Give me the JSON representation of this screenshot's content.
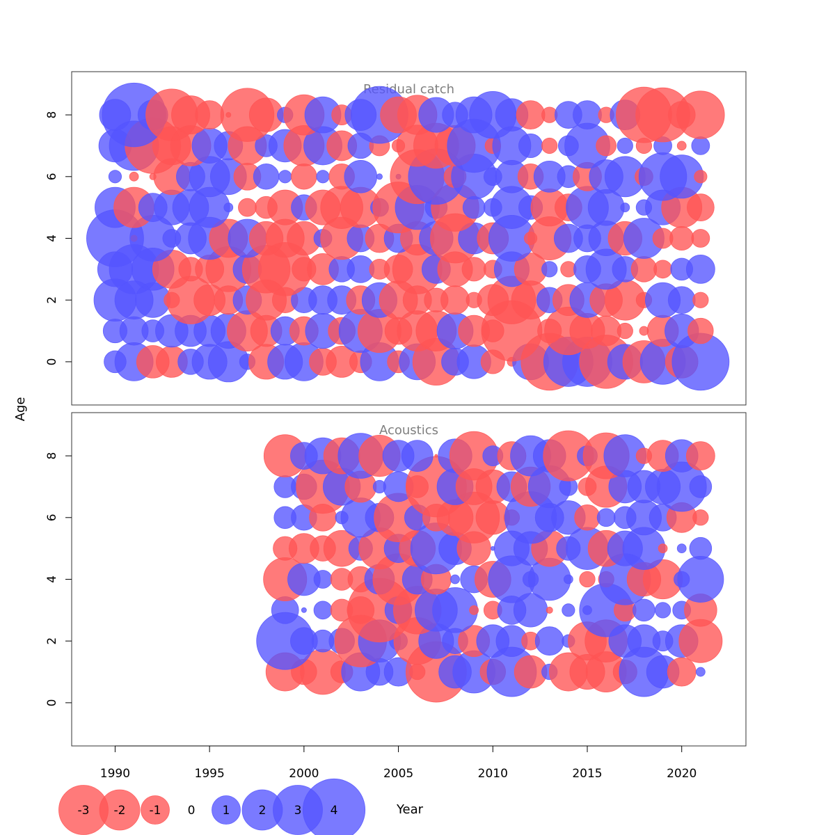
{
  "chart_data": {
    "type": "bubble",
    "xlabel": "Year",
    "ylabel": "Age",
    "xlim": [
      1987.7,
      2023.4
    ],
    "x_ticks": [
      1990,
      1995,
      2000,
      2005,
      2010,
      2015,
      2020
    ],
    "ylim": [
      -1.4,
      9.4
    ],
    "y_ticks": [
      0,
      2,
      4,
      6,
      8
    ],
    "colors": {
      "positive": "#5555ff",
      "negative": "#ff5555",
      "frame": "#333333",
      "panel_title": "#7f7f7f"
    },
    "legend": {
      "placement": "bottom",
      "labels": [
        "-3",
        "-2",
        "-1",
        "0",
        "1",
        "2",
        "3",
        "4"
      ],
      "values": [
        -3,
        -2,
        -1,
        0,
        1,
        2,
        3,
        4
      ]
    },
    "panels": [
      {
        "title": "Residual catch",
        "years": [
          1990,
          1991,
          1992,
          1993,
          1994,
          1995,
          1996,
          1997,
          1998,
          1999,
          2000,
          2001,
          2002,
          2003,
          2004,
          2005,
          2006,
          2007,
          2008,
          2009,
          2010,
          2011,
          2012,
          2013,
          2014,
          2015,
          2016,
          2017,
          2018,
          2019,
          2020,
          2021
        ],
        "ages": [
          0,
          1,
          2,
          3,
          4,
          5,
          6,
          7,
          8
        ],
        "residuals": [
          [
            0.6,
            1.8,
            -1.3,
            -1.2,
            0.8,
            1.5,
            2.0,
            0.3,
            -1.5,
            1.5,
            1.8,
            -0.9,
            -1.2,
            -0.6,
            1.8,
            -0.6,
            1.6,
            -2.7,
            0.9,
            1.4,
            -0.7,
            -0.1,
            1.6,
            -4.0,
            3.0,
            3.0,
            -3.5,
            1.5,
            -2.2,
            2.5,
            -1.3,
            4.0
          ],
          [
            0.7,
            1.0,
            0.6,
            1.3,
            1.2,
            1.2,
            1.5,
            -2.0,
            -1.2,
            1.0,
            -1.0,
            1.5,
            -0.9,
            2.3,
            -2.3,
            -0.9,
            -2.0,
            -2.0,
            1.6,
            -1.2,
            -0.6,
            -4.5,
            0.0,
            -0.7,
            -2.8,
            -1.5,
            -1.1,
            -0.3,
            -0.1,
            -1.2,
            1.4,
            -0.8
          ],
          [
            2.2,
            1.8,
            1.5,
            -0.3,
            -2.8,
            -1.2,
            -1.0,
            1.0,
            -2.0,
            -0.8,
            0.8,
            1.0,
            1.0,
            -1.0,
            1.5,
            -1.8,
            -1.0,
            -0.7,
            -1.0,
            -0.3,
            -1.2,
            -2.8,
            -1.8,
            0.8,
            -1.2,
            1.5,
            -1.3,
            -2.0,
            -0.3,
            1.5,
            0.9,
            -0.3
          ],
          [
            1.5,
            3.0,
            2.2,
            -1.8,
            -0.7,
            -1.0,
            -2.5,
            1.0,
            -2.8,
            -3.5,
            -0.7,
            -1.2,
            0.8,
            0.9,
            -0.5,
            -1.0,
            -3.0,
            1.0,
            -1.5,
            -0.7,
            -0.4,
            1.5,
            -1.3,
            0.3,
            -0.3,
            0.9,
            2.0,
            0.8,
            -0.8,
            -0.4,
            0.6,
            1.0
          ],
          [
            4.0,
            -0.05,
            2.6,
            0.4,
            1.2,
            2.2,
            -1.8,
            1.8,
            -1.4,
            -1.8,
            -1.4,
            0.4,
            -2.2,
            0.9,
            -1.0,
            1.0,
            -1.4,
            1.4,
            -3.0,
            1.2,
            -1.2,
            2.6,
            -0.2,
            -2.3,
            1.0,
            0.9,
            1.5,
            -1.4,
            2.0,
            -0.5,
            -0.7,
            -0.4
          ],
          [
            2.0,
            -2.0,
            1.0,
            1.5,
            1.6,
            2.0,
            0.1,
            -0.4,
            -0.6,
            -1.5,
            0.8,
            -1.5,
            -2.2,
            -2.0,
            0.4,
            -3.2,
            2.4,
            0.6,
            -2.8,
            0.6,
            0.4,
            2.2,
            0.7,
            -1.7,
            -0.9,
            2.2,
            1.6,
            0.1,
            0.3,
            1.5,
            -2.0,
            -0.9
          ],
          [
            0.2,
            -0.1,
            -0.05,
            -1.6,
            1.0,
            2.0,
            1.6,
            -0.9,
            0.8,
            0.2,
            -0.8,
            0.2,
            -0.8,
            1.3,
            0.04,
            0.03,
            -3.6,
            3.8,
            -0.6,
            2.5,
            0.4,
            1.3,
            -0.8,
            1.2,
            0.6,
            -1.0,
            1.4,
            2.0,
            -0.4,
            2.8,
            2.3,
            -0.2
          ],
          [
            1.3,
            3.0,
            -3.8,
            -1.8,
            -2.0,
            1.5,
            1.0,
            -1.8,
            0.6,
            1.3,
            -2.0,
            1.8,
            -1.1,
            0.8,
            -0.5,
            -0.2,
            -2.1,
            -2.5,
            -2.0,
            3.5,
            -0.3,
            1.8,
            0.7,
            -0.3,
            0.5,
            2.5,
            -0.5,
            0.3,
            -0.3,
            0.4,
            -0.1,
            0.4
          ],
          [
            1.2,
            5.0,
            1.1,
            -3.3,
            -1.8,
            -1.0,
            -0.03,
            -3.5,
            -1.4,
            0.3,
            -2.0,
            1.6,
            -0.5,
            1.2,
            4.0,
            -1.6,
            -1.9,
            1.5,
            0.8,
            1.6,
            2.7,
            1.3,
            -1.0,
            -0.3,
            0.9,
            1.0,
            -0.3,
            1.1,
            -3.8,
            -3.6,
            -0.9,
            -2.8
          ]
        ]
      },
      {
        "title": "Acoustics",
        "years": [
          1999,
          2000,
          2001,
          2002,
          2003,
          2004,
          2005,
          2006,
          2007,
          2008,
          2009,
          2010,
          2011,
          2012,
          2013,
          2014,
          2015,
          2016,
          2017,
          2018,
          2019,
          2020,
          2021
        ],
        "ages": [
          1,
          2,
          3,
          4,
          5,
          6,
          7,
          8
        ],
        "residuals": [
          [
            -1.8,
            -0.8,
            -2.5,
            -0.6,
            1.8,
            0.9,
            1.0,
            -0.3,
            -4.5,
            1.3,
            2.2,
            -0.8,
            3.0,
            -1.3,
            0.3,
            -1.8,
            -1.5,
            -2.0,
            -0.7,
            3.0,
            1.3,
            -1.0,
            0.1
          ],
          [
            4.0,
            0.9,
            0.6,
            0.8,
            -3.3,
            2.2,
            0.4,
            -2.7,
            1.5,
            0.8,
            -1.2,
            1.3,
            1.2,
            -0.4,
            1.0,
            0.2,
            -1.8,
            -2.2,
            1.3,
            1.3,
            0.5,
            1.3,
            -2.3
          ],
          [
            0.9,
            0.03,
            0.4,
            -0.6,
            -0.9,
            -5.0,
            0.9,
            -2.8,
            2.2,
            2.5,
            -0.1,
            -0.4,
            1.0,
            1.4,
            -0.05,
            0.2,
            0.1,
            3.5,
            -0.6,
            0.6,
            0.3,
            0.4,
            -1.3
          ],
          [
            -2.3,
            1.3,
            0.4,
            -0.6,
            -0.8,
            1.1,
            -3.2,
            1.1,
            -1.1,
            0.1,
            0.9,
            -1.6,
            2.7,
            0.3,
            2.2,
            0.1,
            -0.3,
            -0.3,
            3.2,
            -1.4,
            -1.9,
            0.3,
            2.6
          ],
          [
            -0.7,
            -1.1,
            -0.8,
            -1.6,
            0.7,
            -2.1,
            1.0,
            -1.6,
            3.2,
            1.3,
            -1.4,
            0.02,
            1.5,
            1.4,
            -1.6,
            0.7,
            2.2,
            -1.6,
            1.5,
            2.2,
            -0.1,
            0.1,
            0.6
          ],
          [
            0.6,
            0.8,
            -0.9,
            0.2,
            1.9,
            1.0,
            -2.9,
            0.8,
            -0.9,
            -1.6,
            -3.2,
            -1.4,
            -0.3,
            3.3,
            1.0,
            1.4,
            -0.8,
            0.4,
            0.6,
            1.5,
            0.9,
            -1.1,
            -0.3
          ],
          [
            0.6,
            0.8,
            -3.5,
            1.7,
            -1.2,
            0.2,
            1.1,
            -0.6,
            -4.5,
            1.6,
            -1.6,
            -1.4,
            1.1,
            -1.9,
            2.2,
            0.4,
            -0.4,
            -2.1,
            1.3,
            1.3,
            1.5,
            3.0,
            0.6
          ],
          [
            -2.2,
            0.9,
            1.6,
            -1.6,
            2.5,
            -2.1,
            1.2,
            1.2,
            -0.01,
            1.4,
            -2.9,
            0.5,
            -1.0,
            2.0,
            1.3,
            -3.1,
            0.5,
            -2.6,
            2.2,
            -0.3,
            -1.2,
            1.3,
            -1.0
          ]
        ]
      }
    ]
  }
}
